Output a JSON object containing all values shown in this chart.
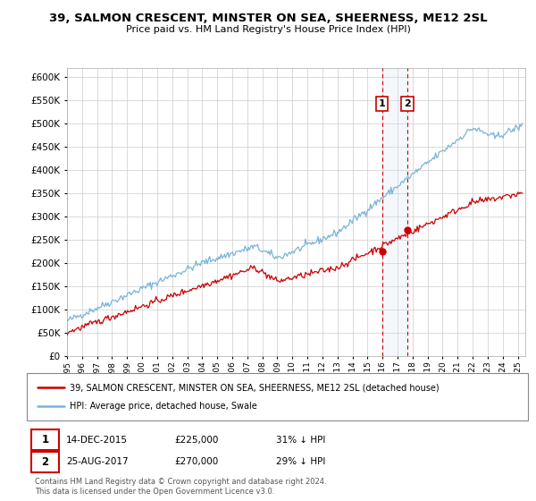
{
  "title": "39, SALMON CRESCENT, MINSTER ON SEA, SHEERNESS, ME12 2SL",
  "subtitle": "Price paid vs. HM Land Registry's House Price Index (HPI)",
  "ylim": [
    0,
    620000
  ],
  "yticks": [
    0,
    50000,
    100000,
    150000,
    200000,
    250000,
    300000,
    350000,
    400000,
    450000,
    500000,
    550000,
    600000
  ],
  "hpi_color": "#7ab4d8",
  "price_color": "#cc0000",
  "marker_color": "#cc0000",
  "vline_color": "#cc0000",
  "shade_color": "#ddeeff",
  "legend_1": "39, SALMON CRESCENT, MINSTER ON SEA, SHEERNESS, ME12 2SL (detached house)",
  "legend_2": "HPI: Average price, detached house, Swale",
  "transaction_1_date": "14-DEC-2015",
  "transaction_1_price": "£225,000",
  "transaction_1_hpi": "31% ↓ HPI",
  "transaction_1_x": 2015.96,
  "transaction_1_y": 225000,
  "transaction_2_date": "25-AUG-2017",
  "transaction_2_price": "£270,000",
  "transaction_2_hpi": "29% ↓ HPI",
  "transaction_2_x": 2017.65,
  "transaction_2_y": 270000,
  "footnote_1": "Contains HM Land Registry data © Crown copyright and database right 2024.",
  "footnote_2": "This data is licensed under the Open Government Licence v3.0.",
  "xmin": 1995,
  "xmax": 2025.5,
  "background_color": "#ffffff",
  "plot_bg_color": "#ffffff",
  "grid_color": "#cccccc"
}
